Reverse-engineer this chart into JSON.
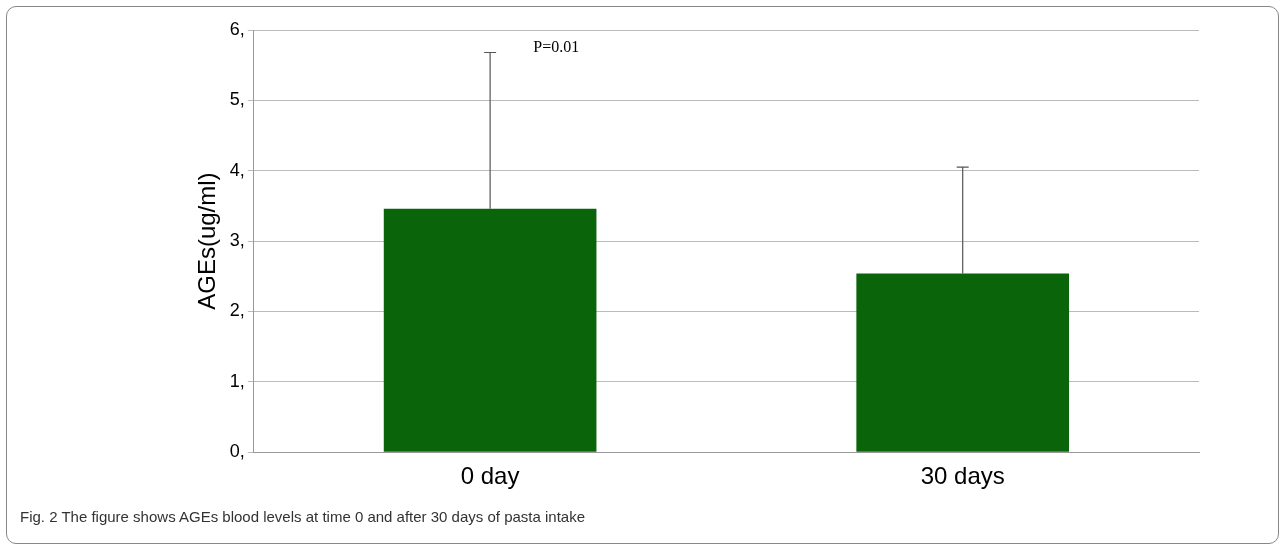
{
  "chart_data": {
    "type": "bar",
    "ylabel": "AGEs(ug/ml)",
    "categories": [
      "0 day",
      "30 days"
    ],
    "values": [
      3.46,
      2.54
    ],
    "errors": [
      [
        3.46,
        5.68
      ],
      [
        2.54,
        4.05
      ]
    ],
    "color": "#0a640a",
    "ylim": [
      0,
      6
    ],
    "yticks": [
      {
        "value": 0,
        "label": "0,"
      },
      {
        "value": 1,
        "label": "1,"
      },
      {
        "value": 2,
        "label": "2,"
      },
      {
        "value": 3,
        "label": "3,"
      },
      {
        "value": 4,
        "label": "4,"
      },
      {
        "value": 5,
        "label": "5,"
      },
      {
        "value": 6,
        "label": "6,"
      }
    ],
    "grid": "y",
    "annotations": [
      "P=0.01",
      "Fig. 2 The figure shows AGEs blood levels at time 0 and after 30 days of pasta intake"
    ]
  }
}
